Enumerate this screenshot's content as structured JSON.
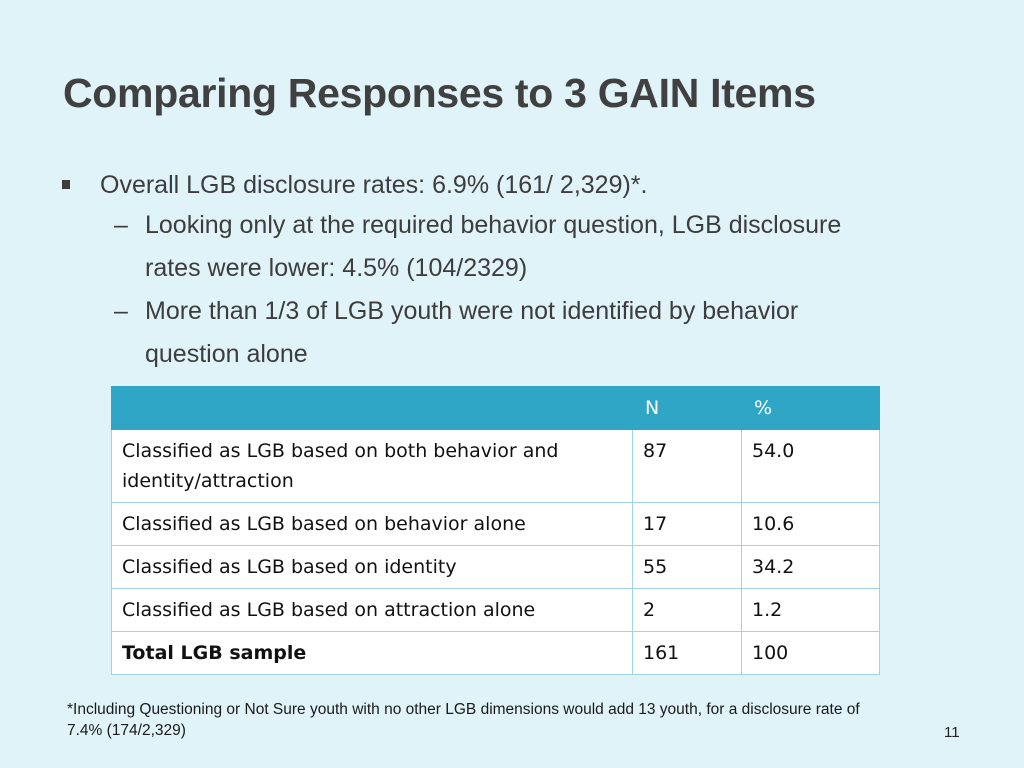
{
  "slide": {
    "title": "Comparing Responses to 3 GAIN Items",
    "bullet": "Overall LGB disclosure rates: 6.9% (161/ 2,329)*.",
    "sub_bullets": [
      {
        "dash": "–",
        "line1": "Looking only at the required behavior question, LGB disclosure",
        "line2": "rates were lower: 4.5% (104/2329)"
      },
      {
        "dash": "–",
        "line1": "More than 1/3 of LGB youth were not identified by behavior",
        "line2": "question alone"
      }
    ],
    "table": {
      "headers": [
        "",
        "N",
        "%"
      ],
      "rows": [
        {
          "label": "Classified as LGB based on both behavior and identity/attraction",
          "n": "87",
          "pct": "54.0"
        },
        {
          "label": "Classified as LGB based on behavior alone",
          "n": "17",
          "pct": "10.6"
        },
        {
          "label": "Classified as LGB based on identity",
          "n": "55",
          "pct": "34.2"
        },
        {
          "label": "Classified as LGB based on attraction alone",
          "n": "2",
          "pct": "1.2"
        },
        {
          "label": "Total LGB sample",
          "n": "161",
          "pct": "100"
        }
      ]
    },
    "footnote": "*Including Questioning or Not Sure youth with no other LGB dimensions would add 13 youth, for a disclosure rate of 7.4% (174/2,329)",
    "page_number": "11"
  },
  "colors": {
    "background": "#dff3f9",
    "table_header": "#2fa6c6",
    "table_border": "#9fd3e5"
  }
}
